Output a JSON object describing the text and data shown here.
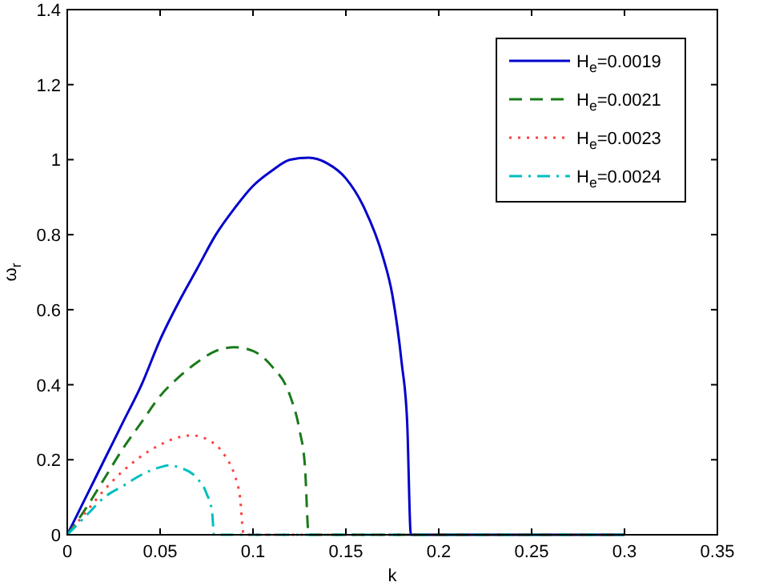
{
  "chart_data": {
    "type": "line",
    "xlabel": "k",
    "ylabel": "ω$_{r}$",
    "xlim": [
      0,
      0.35
    ],
    "ylim": [
      0,
      1.4
    ],
    "xticks": [
      0,
      0.05,
      0.1,
      0.15,
      0.2,
      0.25,
      0.3,
      0.35
    ],
    "yticks": [
      0,
      0.2,
      0.4,
      0.6,
      0.8,
      1,
      1.2,
      1.4
    ],
    "grid": false,
    "legend": "top right",
    "series": [
      {
        "name": "H$_{e}$=0.0019",
        "color": "#0000cc",
        "line_style": "solid",
        "x": [
          0,
          0.01,
          0.02,
          0.03,
          0.04,
          0.05,
          0.06,
          0.07,
          0.08,
          0.09,
          0.1,
          0.11,
          0.12,
          0.13,
          0.14,
          0.15,
          0.16,
          0.17,
          0.175,
          0.18,
          0.183,
          0.185,
          0.3
        ],
        "values": [
          0,
          0.1,
          0.2,
          0.3,
          0.4,
          0.52,
          0.62,
          0.71,
          0.8,
          0.87,
          0.93,
          0.97,
          1,
          1.005,
          0.99,
          0.95,
          0.87,
          0.74,
          0.64,
          0.46,
          0.3,
          0,
          0
        ]
      },
      {
        "name": "H$_{e}$=0.0021",
        "color": "#1a7a1a",
        "line_style": "dashed",
        "x": [
          0,
          0.01,
          0.02,
          0.03,
          0.04,
          0.05,
          0.06,
          0.07,
          0.08,
          0.09,
          0.1,
          0.11,
          0.12,
          0.125,
          0.128,
          0.13,
          0.3
        ],
        "values": [
          0,
          0.07,
          0.15,
          0.23,
          0.3,
          0.37,
          0.42,
          0.46,
          0.49,
          0.5,
          0.49,
          0.45,
          0.37,
          0.28,
          0.18,
          0,
          0
        ]
      },
      {
        "name": "H$_{e}$=0.0023",
        "color": "#ff4040",
        "line_style": "dotted",
        "x": [
          0,
          0.01,
          0.02,
          0.03,
          0.04,
          0.05,
          0.06,
          0.067,
          0.075,
          0.085,
          0.09,
          0.093,
          0.095,
          0.3
        ],
        "values": [
          0,
          0.06,
          0.12,
          0.17,
          0.21,
          0.24,
          0.26,
          0.265,
          0.255,
          0.21,
          0.16,
          0.1,
          0,
          0
        ]
      },
      {
        "name": "H$_{e}$=0.0024",
        "color": "#00bfbf",
        "line_style": "dashdot",
        "x": [
          0,
          0.01,
          0.02,
          0.03,
          0.04,
          0.05,
          0.055,
          0.06,
          0.07,
          0.075,
          0.078,
          0.079,
          0.3
        ],
        "values": [
          0,
          0.05,
          0.1,
          0.13,
          0.16,
          0.18,
          0.185,
          0.18,
          0.15,
          0.11,
          0.06,
          0,
          0
        ]
      }
    ]
  }
}
